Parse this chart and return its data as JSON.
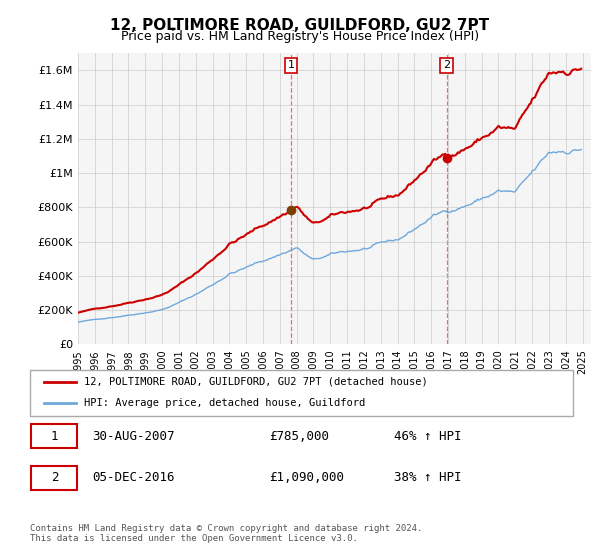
{
  "title": "12, POLTIMORE ROAD, GUILDFORD, GU2 7PT",
  "subtitle": "Price paid vs. HM Land Registry's House Price Index (HPI)",
  "ylim": [
    0,
    1700000
  ],
  "yticks": [
    0,
    200000,
    400000,
    600000,
    800000,
    1000000,
    1200000,
    1400000,
    1600000
  ],
  "ytick_labels": [
    "£0",
    "£200K",
    "£400K",
    "£600K",
    "£800K",
    "£1M",
    "£1.2M",
    "£1.4M",
    "£1.6M"
  ],
  "xlim_start": 1995.0,
  "xlim_end": 2025.5,
  "hpi_color": "#6fa8dc",
  "price_color": "#cc0000",
  "sale1_x": 2007.664,
  "sale1_y": 785000,
  "sale2_x": 2016.922,
  "sale2_y": 1090000,
  "vline_color": "#ff6666",
  "legend_line1": "12, POLTIMORE ROAD, GUILDFORD, GU2 7PT (detached house)",
  "legend_line2": "HPI: Average price, detached house, Guildford",
  "table_row1": [
    "1",
    "30-AUG-2007",
    "£785,000",
    "46% ↑ HPI"
  ],
  "table_row2": [
    "2",
    "05-DEC-2016",
    "£1,090,000",
    "38% ↑ HPI"
  ],
  "footer": "Contains HM Land Registry data © Crown copyright and database right 2024.\nThis data is licensed under the Open Government Licence v3.0.",
  "plot_bg_color": "#f5f5f5"
}
